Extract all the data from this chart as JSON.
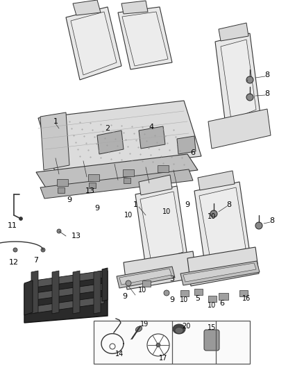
{
  "bg_color": "#ffffff",
  "line_color": "#555555",
  "dark_line": "#333333",
  "label_color": "#000000",
  "figsize": [
    4.38,
    5.33
  ],
  "dpi": 100,
  "seat_fill": "#e8e8e8",
  "seat_fill2": "#d8d8d8",
  "frame_fill": "#c0c0c0",
  "dark_fill": "#3a3a3a"
}
